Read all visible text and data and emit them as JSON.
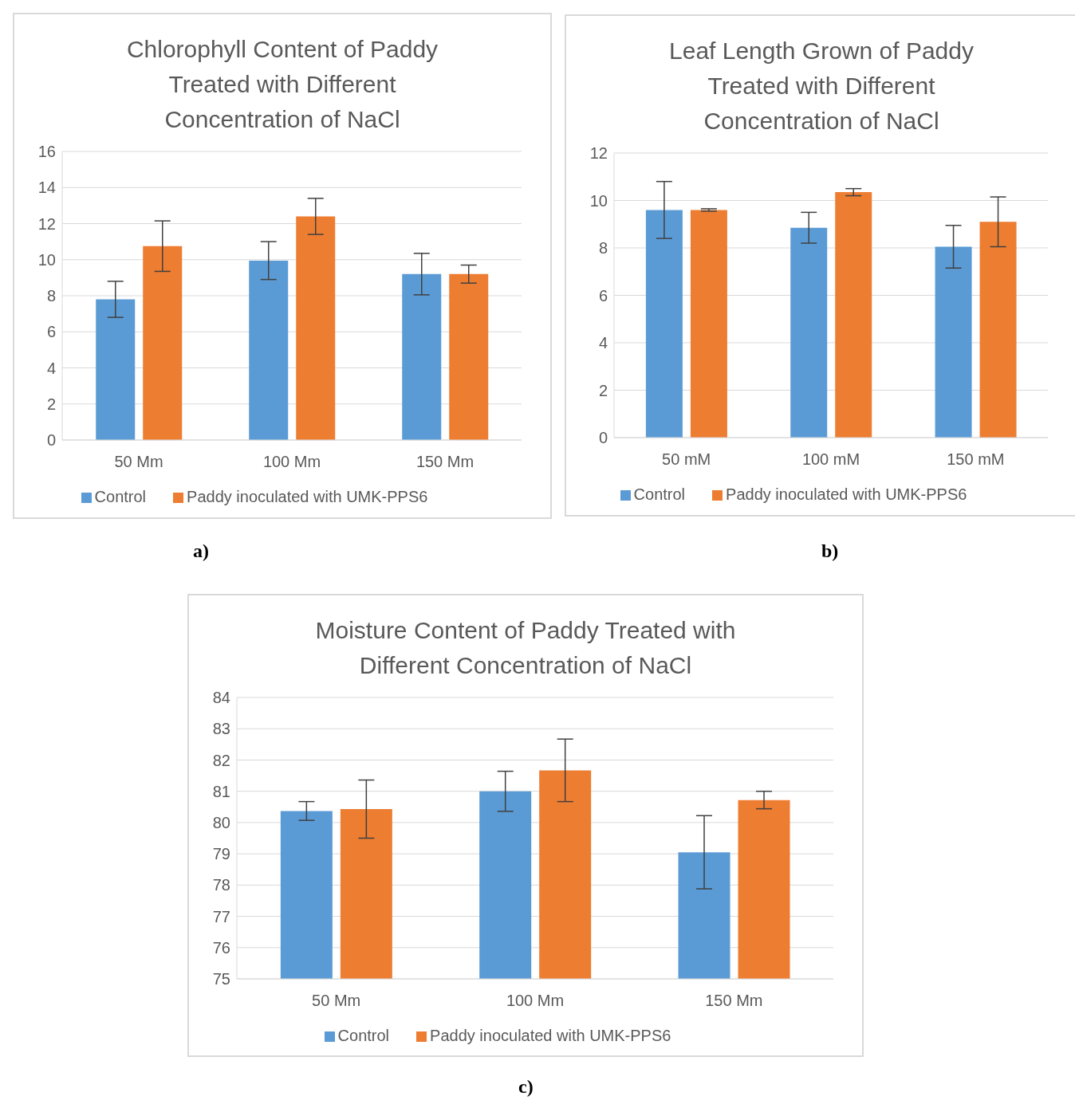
{
  "chart_data": [
    {
      "type": "bar",
      "title": "Chlorophyll Content of Paddy Treated with Different Concentration of NaCl",
      "categories": [
        "50 Mm",
        "100 Mm",
        "150 Mm"
      ],
      "series": [
        {
          "name": "Control",
          "color": "#5b9bd5",
          "values": [
            7.8,
            9.95,
            9.2
          ],
          "errors": [
            1.0,
            1.05,
            1.15
          ]
        },
        {
          "name": "Paddy inoculated with UMK-PPS6",
          "color": "#ed7d31",
          "values": [
            10.75,
            12.4,
            9.2
          ],
          "errors": [
            1.4,
            1.0,
            0.5
          ]
        }
      ],
      "ylim": [
        0,
        16
      ],
      "yticks": [
        0,
        2,
        4,
        6,
        8,
        10,
        12,
        14,
        16
      ],
      "grid": "y",
      "legend": "bottom",
      "annotations": [
        "a)"
      ]
    },
    {
      "type": "bar",
      "title": "Leaf Length Grown of Paddy Treated with Different Concentration of NaCl",
      "categories": [
        "50 mM",
        "100 mM",
        "150 mM"
      ],
      "series": [
        {
          "name": "Control",
          "color": "#5b9bd5",
          "values": [
            9.6,
            8.85,
            8.05
          ],
          "errors": [
            1.2,
            0.65,
            0.9
          ]
        },
        {
          "name": "Paddy inoculated with UMK-PPS6",
          "color": "#ed7d31",
          "values": [
            9.6,
            10.35,
            9.1
          ],
          "errors": [
            0.05,
            0.15,
            1.05
          ]
        }
      ],
      "ylim": [
        0,
        12
      ],
      "yticks": [
        0,
        2,
        4,
        6,
        8,
        10,
        12
      ],
      "grid": "y",
      "legend": "bottom",
      "annotations": [
        "b)"
      ]
    },
    {
      "type": "bar",
      "title": "Moisture Content of Paddy Treated with Different Concentration of NaCl",
      "categories": [
        "50 Mm",
        "100 Mm",
        "150 Mm"
      ],
      "series": [
        {
          "name": "Control",
          "color": "#5b9bd5",
          "values": [
            80.37,
            81.0,
            79.05
          ],
          "errors": [
            0.3,
            0.64,
            1.17
          ]
        },
        {
          "name": "Paddy inoculated with UMK-PPS6",
          "color": "#ed7d31",
          "values": [
            80.43,
            81.67,
            80.72
          ],
          "errors": [
            0.93,
            1.0,
            0.28
          ]
        }
      ],
      "ylim": [
        75,
        84
      ],
      "yticks": [
        75,
        76,
        77,
        78,
        79,
        80,
        81,
        82,
        83,
        84
      ],
      "grid": "y",
      "legend": "bottom",
      "annotations": [
        "c)"
      ]
    }
  ]
}
